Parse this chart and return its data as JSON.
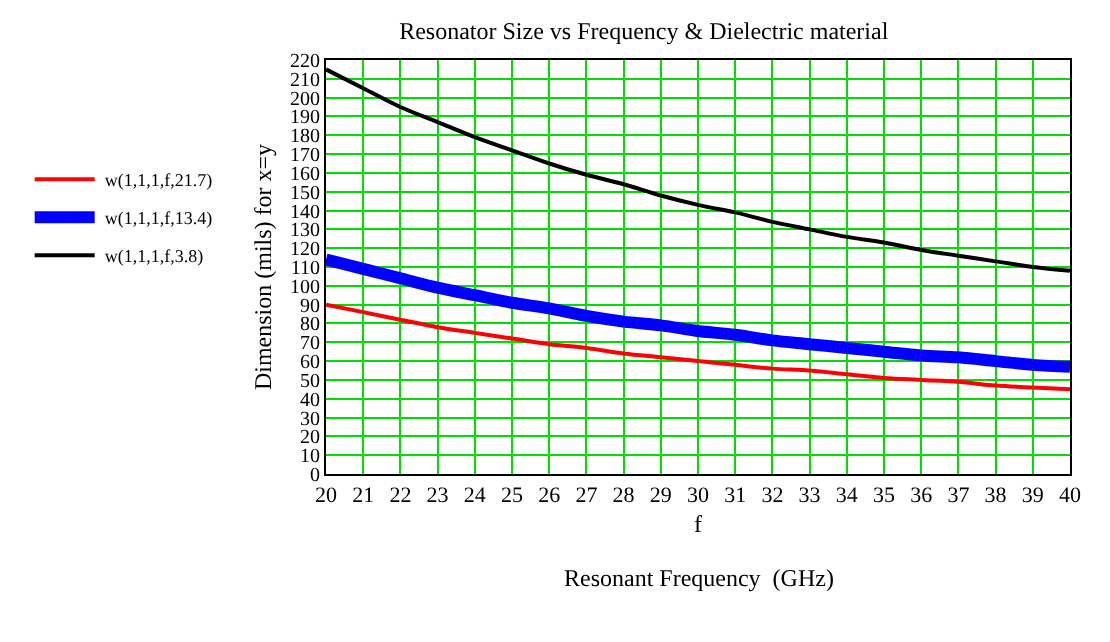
{
  "chart_data": {
    "type": "line",
    "title": "Resonator Size vs Frequency & Dielectric material",
    "xlabel": "f",
    "ylabel": "Dimension (mils) for x=y",
    "annotations": [
      "Resonant Frequency  (GHz)"
    ],
    "x": [
      20,
      21,
      22,
      23,
      24,
      25,
      26,
      27,
      28,
      29,
      30,
      31,
      32,
      33,
      34,
      35,
      36,
      37,
      38,
      39,
      40
    ],
    "series": [
      {
        "name": "w(1,1,1,f,21.7)",
        "color": "#ff0000",
        "values": [
          90,
          86,
          82,
          78,
          75,
          72,
          69,
          67,
          64,
          62,
          60,
          58,
          56,
          55,
          53,
          51,
          50,
          49,
          47,
          46,
          45
        ]
      },
      {
        "name": "w(1,1,1,f,13.4)",
        "color": "#0000ff",
        "values": [
          114,
          109,
          104,
          99,
          95,
          91,
          88,
          84,
          81,
          79,
          76,
          74,
          71,
          69,
          67,
          65,
          63,
          62,
          60,
          58,
          57
        ]
      },
      {
        "name": "w(1,1,1,f,3.8)",
        "color": "#000000",
        "values": [
          215,
          205,
          195,
          187,
          179,
          172,
          165,
          159,
          154,
          148,
          143,
          139,
          134,
          130,
          126,
          123,
          119,
          116,
          113,
          110,
          108
        ]
      }
    ],
    "xlim": [
      20,
      40
    ],
    "xticks": [
      20,
      21,
      22,
      23,
      24,
      25,
      26,
      27,
      28,
      29,
      30,
      31,
      32,
      33,
      34,
      35,
      36,
      37,
      38,
      39,
      40
    ],
    "ylim": [
      0,
      220
    ],
    "yticks": [
      0,
      10,
      20,
      30,
      40,
      50,
      60,
      70,
      80,
      90,
      100,
      110,
      120,
      130,
      140,
      150,
      160,
      170,
      180,
      190,
      200,
      210,
      220
    ],
    "grid": true,
    "legend": "left",
    "marker": "none",
    "line_style": "solid"
  }
}
